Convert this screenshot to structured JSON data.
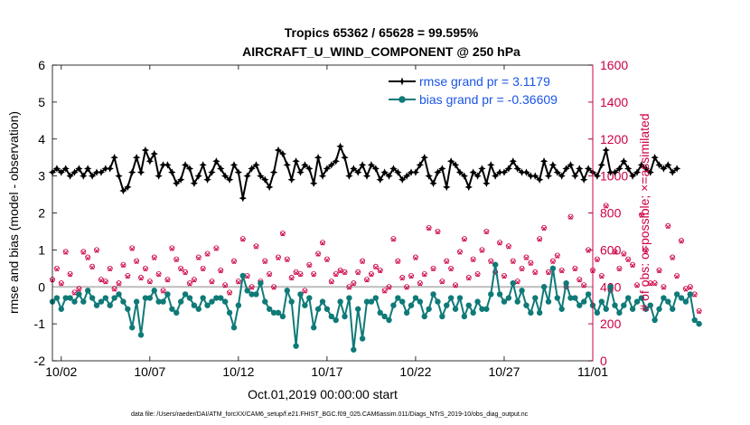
{
  "chart_data": {
    "type": "line",
    "title_line1": "Tropics 65362 / 65628 = 99.595%",
    "title_line2": "AIRCRAFT_U_WIND_COMPONENT @ 250 hPa",
    "xlabel": "Oct.01,2019 00:00:00 start",
    "ylabel_left": "rmse and bias (model - observation)",
    "ylabel_right": "# of obs: o=possible; ×=assimilated",
    "footer": "data file: /Users/raeder/DAI/ATM_forcXX/CAM6_setup/f.e21.FHIST_BGC.f09_025.CAM6assim.011/Diags_NTrS_2019-10/obs_diag_output.nc",
    "xlim": [
      1.5,
      32
    ],
    "ylim_left": [
      -2,
      6
    ],
    "ylim_right": [
      0,
      1600
    ],
    "x_ticks": [
      2,
      7,
      12,
      17,
      22,
      27,
      32
    ],
    "x_tick_labels": [
      "10/02",
      "10/07",
      "10/12",
      "10/17",
      "10/22",
      "10/27",
      "11/01"
    ],
    "y_left_ticks": [
      -2,
      -1,
      0,
      1,
      2,
      3,
      4,
      5,
      6
    ],
    "y_right_ticks": [
      0,
      200,
      400,
      600,
      800,
      1000,
      1200,
      1400,
      1600
    ],
    "colors": {
      "rmse": "#000000",
      "bias": "#0f7a78",
      "obs": "#cc0044",
      "zero": "#bdbdbd",
      "legend_text": "#1a54e8"
    },
    "x_start": 1.5,
    "x_step": 0.25,
    "series": [
      {
        "name": "rmse",
        "legend": "rmse grand pr = 3.1179",
        "values": [
          3.1,
          3.2,
          3.1,
          3.2,
          3.0,
          3.1,
          3.2,
          3.0,
          3.2,
          3.0,
          3.1,
          3.1,
          3.2,
          3.2,
          3.5,
          3.0,
          2.6,
          2.7,
          3.1,
          3.5,
          3.1,
          3.7,
          3.4,
          3.6,
          3.0,
          3.3,
          3.3,
          3.1,
          2.8,
          2.9,
          3.3,
          3.2,
          2.8,
          3.0,
          3.3,
          2.9,
          3.1,
          3.4,
          3.2,
          3.0,
          2.9,
          3.3,
          3.1,
          2.4,
          3.0,
          3.2,
          3.3,
          3.0,
          2.9,
          2.7,
          3.1,
          3.7,
          3.6,
          3.3,
          2.9,
          3.4,
          3.1,
          3.3,
          3.2,
          2.8,
          3.5,
          3.0,
          3.2,
          3.3,
          3.4,
          3.8,
          3.5,
          3.0,
          3.2,
          3.1,
          3.3,
          3.0,
          3.3,
          3.2,
          2.9,
          3.1,
          3.0,
          3.2,
          3.1,
          2.9,
          3.0,
          3.1,
          3.1,
          3.3,
          3.5,
          3.0,
          2.8,
          3.1,
          3.2,
          2.7,
          3.4,
          3.3,
          3.1,
          3.0,
          2.7,
          3.1,
          3.0,
          3.2,
          2.8,
          3.3,
          3.0,
          3.1,
          3.1,
          3.2,
          3.4,
          3.2,
          3.1,
          3.1,
          3.0,
          3.0,
          2.9,
          3.4,
          3.0,
          3.3,
          3.1,
          3.0,
          3.2,
          3.3,
          3.0,
          3.2,
          2.9,
          3.2,
          3.1,
          3.0,
          3.3,
          3.7,
          3.1,
          3.1,
          3.2,
          3.4,
          3.2,
          3.0,
          3.1,
          3.3,
          3.2,
          3.1,
          3.5,
          3.3,
          3.2,
          3.3,
          3.1,
          3.2
        ]
      },
      {
        "name": "bias",
        "legend": "bias grand pr = -0.36609",
        "values": [
          -0.4,
          -0.3,
          -0.6,
          -0.3,
          -0.3,
          -0.4,
          -0.2,
          -0.4,
          -0.1,
          -0.3,
          -0.5,
          -0.4,
          -0.3,
          -0.5,
          -0.3,
          -0.2,
          -0.4,
          -0.6,
          -1.1,
          -0.4,
          -1.3,
          -0.3,
          -0.3,
          -0.1,
          -0.4,
          -0.4,
          -0.2,
          -0.6,
          -0.7,
          -0.4,
          -0.2,
          -0.3,
          -0.5,
          -0.6,
          -0.3,
          -0.5,
          -0.4,
          -0.3,
          -0.3,
          -0.4,
          -0.7,
          -1.1,
          -0.5,
          0.3,
          -0.1,
          -0.2,
          -0.2,
          0.1,
          -0.4,
          -0.6,
          -0.7,
          -0.7,
          -0.8,
          -0.1,
          -0.4,
          -1.6,
          -0.2,
          -0.5,
          -0.3,
          -1.1,
          -0.6,
          -0.4,
          -0.6,
          -0.8,
          -0.9,
          -0.4,
          -0.8,
          -0.3,
          -1.7,
          -0.6,
          -1.4,
          -0.4,
          -0.4,
          -0.3,
          -0.7,
          -0.8,
          -0.9,
          -0.5,
          -0.3,
          -0.4,
          -0.7,
          -0.5,
          -0.3,
          -0.4,
          -0.8,
          -0.6,
          -0.2,
          -0.4,
          -0.8,
          -0.5,
          -0.3,
          -0.6,
          -0.3,
          -0.8,
          -0.5,
          -0.7,
          -0.4,
          -0.6,
          -0.6,
          -0.2,
          0.6,
          -0.2,
          -0.4,
          -0.3,
          0.1,
          -0.4,
          -0.1,
          -0.5,
          -0.7,
          -0.3,
          -0.7,
          0.0,
          -0.4,
          0.5,
          -0.3,
          -0.6,
          0.1,
          -0.3,
          -0.3,
          -0.5,
          -0.4,
          -0.2,
          -0.5,
          -0.7,
          -0.4,
          -0.6,
          0.0,
          -0.5,
          -0.7,
          -0.5,
          -0.3,
          -0.6,
          -0.4,
          -0.3,
          -0.6,
          -0.5,
          -0.9,
          -0.6,
          -0.3,
          -0.4,
          -0.6,
          -0.2,
          -0.3,
          -0.4,
          -0.2,
          -0.9,
          -1.0
        ]
      },
      {
        "name": "obs_possible",
        "values": [
          440,
          500,
          420,
          590,
          470,
          370,
          390,
          590,
          560,
          510,
          600,
          440,
          430,
          500,
          390,
          420,
          520,
          460,
          610,
          540,
          450,
          500,
          430,
          560,
          470,
          380,
          440,
          610,
          550,
          500,
          480,
          420,
          440,
          560,
          500,
          580,
          430,
          610,
          490,
          410,
          370,
          540,
          430,
          660,
          460,
          400,
          620,
          430,
          540,
          470,
          400,
          560,
          690,
          550,
          450,
          480,
          470,
          380,
          520,
          470,
          580,
          640,
          550,
          430,
          470,
          490,
          480,
          400,
          420,
          480,
          540,
          440,
          470,
          510,
          490,
          380,
          400,
          660,
          540,
          450,
          400,
          460,
          560,
          420,
          470,
          720,
          500,
          700,
          430,
          540,
          500,
          410,
          590,
          660,
          450,
          550,
          470,
          600,
          700,
          540,
          480,
          640,
          460,
          620,
          540,
          430,
          500,
          560,
          530,
          480,
          660,
          720,
          480,
          540,
          570,
          490,
          400,
          780,
          500,
          440,
          410,
          600,
          490,
          550,
          460,
          840,
          380,
          590,
          500,
          580,
          550,
          520,
          410,
          790,
          600,
          420,
          420,
          490,
          400,
          730,
          560,
          460,
          650,
          390,
          400,
          360,
          270
        ]
      },
      {
        "name": "obs_assimilated",
        "values": [
          435,
          495,
          415,
          585,
          465,
          365,
          385,
          585,
          555,
          505,
          595,
          435,
          425,
          495,
          385,
          415,
          515,
          455,
          605,
          535,
          445,
          495,
          425,
          555,
          465,
          375,
          435,
          605,
          545,
          495,
          475,
          415,
          435,
          555,
          495,
          575,
          425,
          605,
          485,
          405,
          365,
          535,
          425,
          655,
          455,
          395,
          615,
          425,
          535,
          465,
          395,
          555,
          685,
          545,
          445,
          475,
          465,
          375,
          515,
          465,
          575,
          635,
          545,
          425,
          465,
          485,
          475,
          395,
          415,
          475,
          535,
          435,
          465,
          505,
          485,
          375,
          395,
          655,
          535,
          445,
          395,
          455,
          555,
          415,
          465,
          715,
          495,
          695,
          425,
          535,
          495,
          405,
          585,
          655,
          445,
          545,
          465,
          595,
          695,
          535,
          475,
          635,
          455,
          615,
          535,
          425,
          495,
          555,
          525,
          475,
          655,
          715,
          475,
          535,
          565,
          485,
          395,
          775,
          495,
          435,
          405,
          595,
          485,
          545,
          455,
          835,
          375,
          585,
          495,
          575,
          545,
          515,
          405,
          785,
          595,
          415,
          415,
          485,
          395,
          725,
          555,
          455,
          645,
          385,
          395,
          355,
          265
        ]
      }
    ]
  }
}
